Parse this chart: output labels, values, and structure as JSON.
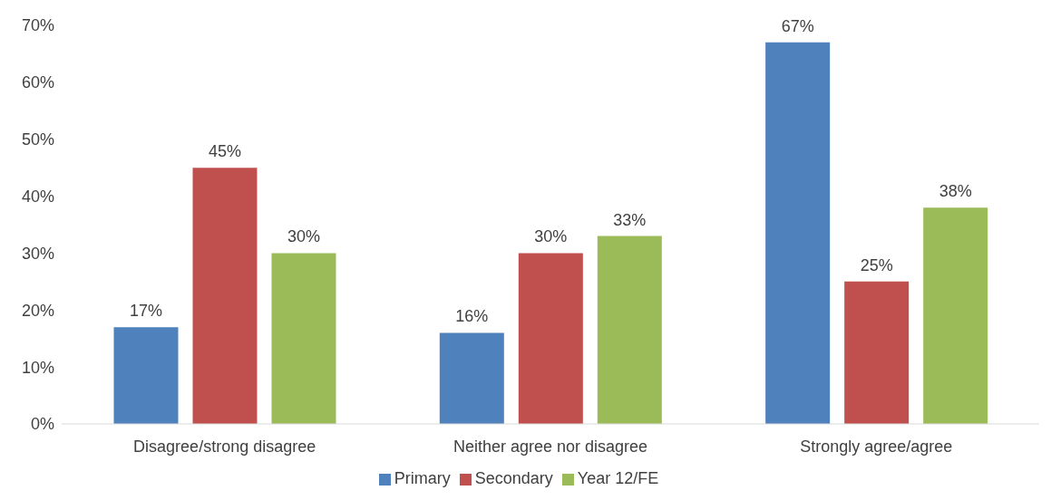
{
  "chart_data": {
    "type": "bar",
    "categories": [
      "Disagree/strong disagree",
      "Neither agree nor disagree",
      "Strongly agree/agree"
    ],
    "series": [
      {
        "name": "Primary",
        "color": "#4f81bd",
        "values": [
          17,
          16,
          67
        ],
        "value_labels": [
          "17%",
          "16%",
          "67%"
        ]
      },
      {
        "name": "Secondary",
        "color": "#c0504d",
        "values": [
          45,
          30,
          25
        ],
        "value_labels": [
          "45%",
          "30%",
          "25%"
        ]
      },
      {
        "name": "Year 12/FE",
        "color": "#9bbb59",
        "values": [
          30,
          33,
          38
        ],
        "value_labels": [
          "30%",
          "33%",
          "38%"
        ]
      }
    ],
    "ylim": [
      0,
      70
    ],
    "yticks": [
      {
        "value": 0,
        "label": "0%"
      },
      {
        "value": 10,
        "label": "10%"
      },
      {
        "value": 20,
        "label": "20%"
      },
      {
        "value": 30,
        "label": "30%"
      },
      {
        "value": 40,
        "label": "40%"
      },
      {
        "value": 50,
        "label": "50%"
      },
      {
        "value": 60,
        "label": "60%"
      },
      {
        "value": 70,
        "label": "70%"
      }
    ],
    "grid": false,
    "legend": "bottom"
  }
}
